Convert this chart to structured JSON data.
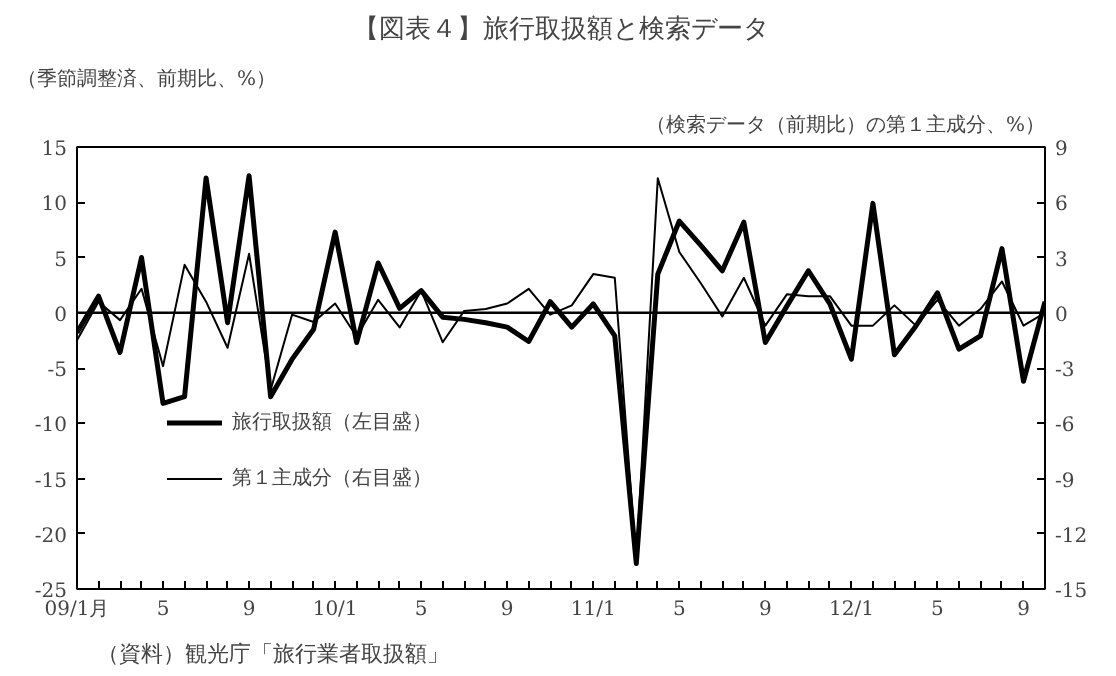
{
  "chart_data": {
    "type": "line",
    "title": "【図表４】旅行取扱額と検索データ",
    "ylabel": "（季節調整済、前期比、%）",
    "y2label": "（検索データ（前期比）の第１主成分、%）",
    "annotations": [
      "（資料）観光庁「旅行業者取扱額」"
    ],
    "categories": [
      "09/1月",
      null,
      null,
      null,
      "5",
      null,
      null,
      null,
      "9",
      null,
      null,
      null,
      "10/1",
      null,
      null,
      null,
      "5",
      null,
      null,
      null,
      "9",
      null,
      null,
      null,
      "11/1",
      null,
      null,
      null,
      "5",
      null,
      null,
      null,
      "9",
      null,
      null,
      null,
      "12/1",
      null,
      null,
      null,
      "5",
      null,
      null,
      null,
      "9",
      null
    ],
    "series": [
      {
        "name": "旅行取扱額（左目盛）",
        "color": "#000000",
        "values": [
          -1.8,
          1.5,
          -3.6,
          5.0,
          -8.2,
          -7.6,
          12.2,
          -0.9,
          12.4,
          -7.6,
          -4.2,
          -1.5,
          7.3,
          -2.7,
          4.5,
          0.4,
          2.0,
          -0.4,
          -0.6,
          -0.9,
          -1.3,
          -2.6,
          1.0,
          -1.3,
          0.8,
          -2.1,
          -22.7,
          3.5,
          8.3,
          6.1,
          3.8,
          8.2,
          -2.7,
          0.6,
          3.8,
          0.8,
          -4.2,
          9.9,
          -3.8,
          -1.2,
          1.8,
          -3.3,
          -2.1,
          5.8,
          -6.2,
          1.0
        ]
      },
      {
        "name": "第１主成分（右目盛）",
        "color": "#000000",
        "axis": "y2",
        "values": [
          -1.5,
          0.6,
          -0.4,
          1.3,
          -2.9,
          2.6,
          0.6,
          -1.9,
          3.2,
          -4.2,
          -0.1,
          -0.5,
          0.5,
          -1.3,
          0.7,
          -0.8,
          1.2,
          -1.6,
          0.1,
          0.2,
          0.5,
          1.3,
          -0.1,
          0.4,
          2.1,
          1.9,
          -13.5,
          7.3,
          3.3,
          1.6,
          -0.2,
          1.9,
          -0.7,
          1.0,
          0.9,
          0.9,
          -0.7,
          -0.7,
          0.4,
          -0.7,
          0.7,
          -0.7,
          0.2,
          1.7,
          -0.7,
          0
        ]
      }
    ],
    "ylim": [
      -25,
      15
    ],
    "yticks": [
      -25,
      -20,
      -15,
      -10,
      -5,
      0,
      5,
      10,
      15
    ],
    "y2lim": [
      -15,
      9
    ],
    "y2ticks": [
      -15,
      -12,
      -9,
      -6,
      -3,
      0,
      3,
      6,
      9
    ],
    "ref_lines": [
      {
        "axis": "y",
        "value": 0,
        "label": null,
        "color": "#000000"
      }
    ],
    "grid": false,
    "legend": "bottom left",
    "marker": "none",
    "line_style": "solid"
  }
}
